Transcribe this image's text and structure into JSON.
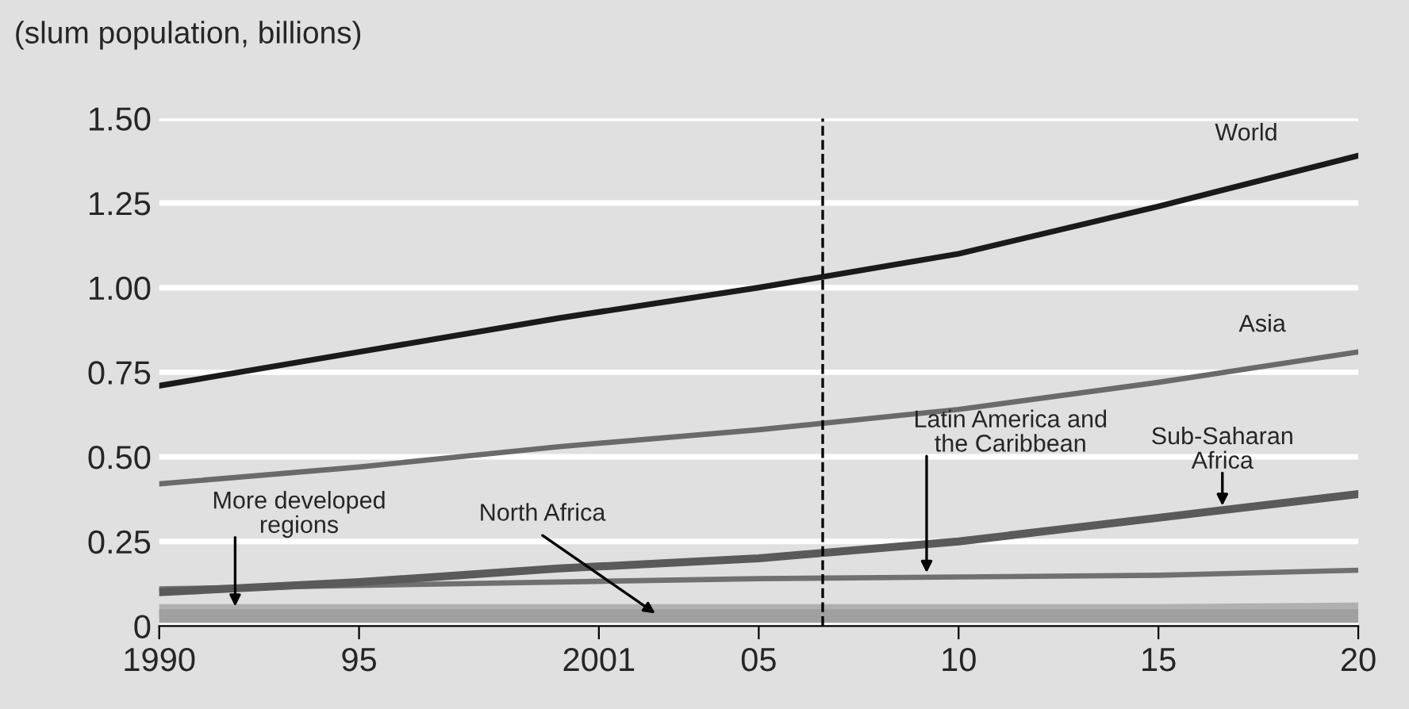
{
  "chart_data": {
    "type": "line",
    "ylabel": "(slum population, billions)",
    "x": [
      1990,
      1995,
      2000,
      2005,
      2010,
      2015,
      2020
    ],
    "series": [
      {
        "name": "World",
        "color": "#1a1a1a",
        "values": [
          0.71,
          0.81,
          0.91,
          1.0,
          1.1,
          1.24,
          1.39
        ]
      },
      {
        "name": "Asia",
        "color": "#6a6a6a",
        "values": [
          0.42,
          0.47,
          0.53,
          0.58,
          0.64,
          0.72,
          0.81
        ]
      },
      {
        "name": "Sub-Saharan\nAfrica",
        "color": "#5a5a5a",
        "values": [
          0.1,
          0.13,
          0.17,
          0.2,
          0.25,
          0.32,
          0.39
        ]
      },
      {
        "name": "Latin America and\nthe Caribbean",
        "color": "#707070",
        "values": [
          0.11,
          0.12,
          0.13,
          0.14,
          0.145,
          0.15,
          0.165
        ]
      },
      {
        "name": "North Africa",
        "color": "#a0a0a0",
        "values": [
          0.03,
          0.03,
          0.03,
          0.03,
          0.03,
          0.03,
          0.03
        ]
      },
      {
        "name": "More developed\nregions",
        "color": "#b0b0b0",
        "values": [
          0.045,
          0.045,
          0.045,
          0.045,
          0.045,
          0.045,
          0.05
        ]
      }
    ],
    "xlim": [
      1990,
      2020
    ],
    "xticks": [
      1990,
      {
        "value": 1995,
        "label": "95"
      },
      2001,
      {
        "value": 2005,
        "label": "05"
      },
      {
        "value": 2010,
        "label": "10"
      },
      {
        "value": 2015,
        "label": "15"
      },
      {
        "value": 2020,
        "label": "20"
      }
    ],
    "ylim": [
      0,
      1.5
    ],
    "yticks": [
      0,
      0.25,
      {
        "value": 0.5,
        "label": "0.50"
      },
      0.75,
      {
        "value": 1.0,
        "label": "1.00"
      },
      1.25,
      {
        "value": 1.5,
        "label": "1.50"
      }
    ],
    "grid": "y",
    "legend": false,
    "line_style": "solid",
    "marker": "none",
    "ref_lines": [
      {
        "axis": "x",
        "value": 2006.6,
        "line_style": "dashed",
        "color": "#000000"
      }
    ]
  }
}
